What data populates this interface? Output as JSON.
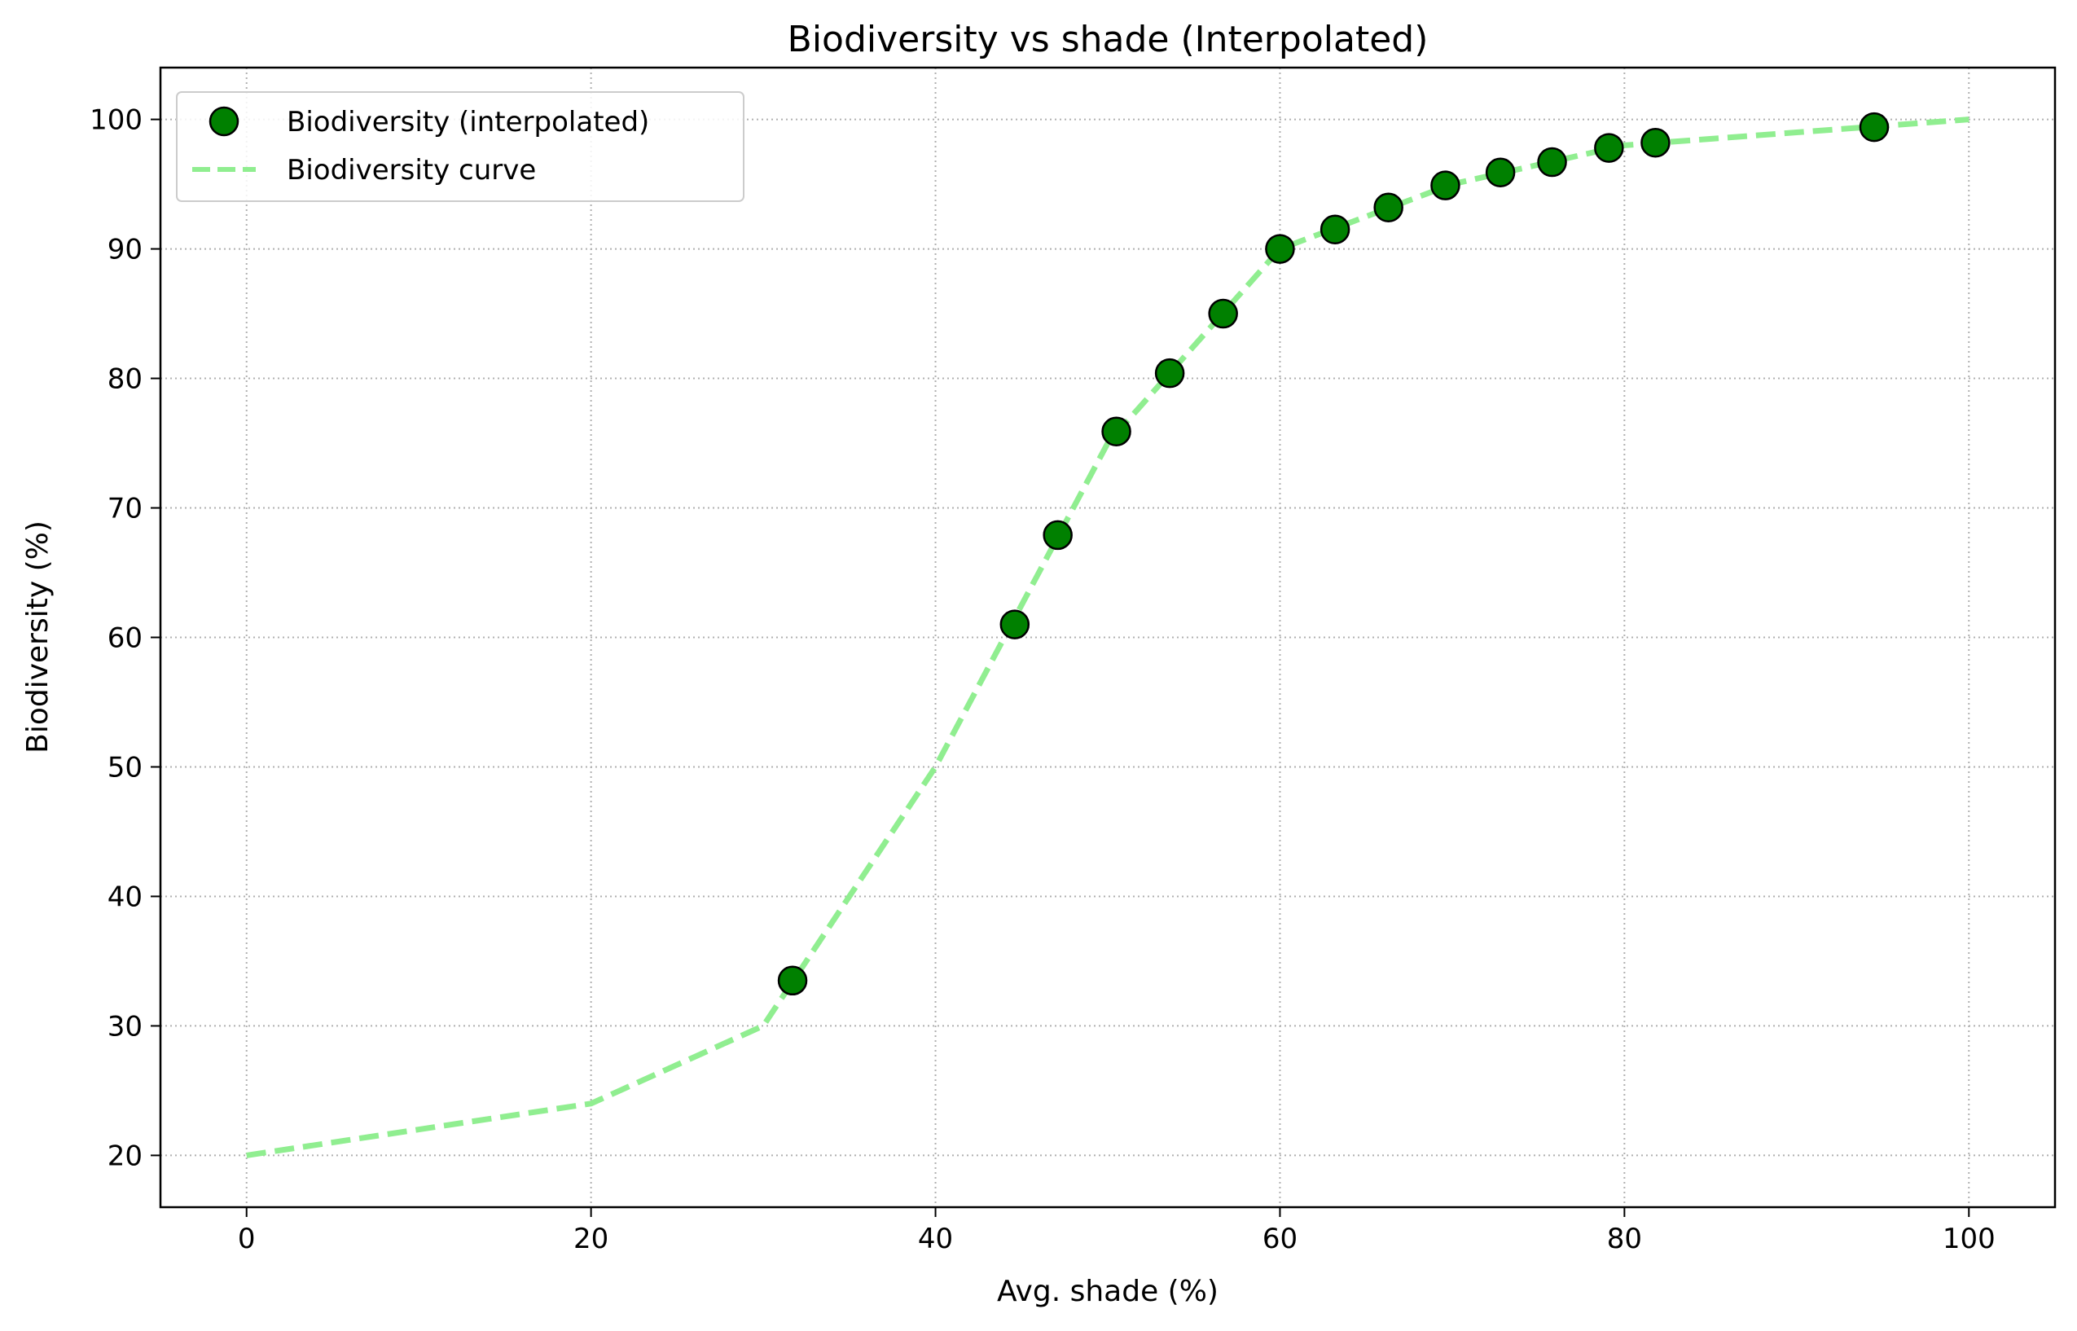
{
  "chart_data": {
    "type": "scatter",
    "title": "Biodiversity vs shade (Interpolated)",
    "xlabel": "Avg. shade (%)",
    "ylabel": "Biodiversity (%)",
    "xlim": [
      -5,
      105
    ],
    "ylim": [
      16,
      104
    ],
    "xticks": [
      0,
      20,
      40,
      60,
      80,
      100
    ],
    "yticks": [
      20,
      30,
      40,
      50,
      60,
      70,
      80,
      90,
      100
    ],
    "grid": true,
    "legend_position": "upper-left",
    "series": [
      {
        "name": "Biodiversity (interpolated)",
        "kind": "scatter",
        "color": "#008000",
        "edge_color": "#000000",
        "x": [
          31.7,
          44.6,
          47.1,
          50.5,
          53.6,
          56.7,
          60.0,
          63.2,
          66.3,
          69.6,
          72.8,
          75.8,
          79.1,
          81.8,
          94.5
        ],
        "y": [
          33.5,
          61.0,
          67.9,
          75.9,
          80.4,
          85.0,
          90.0,
          91.5,
          93.2,
          94.9,
          95.9,
          96.7,
          97.8,
          98.2,
          99.4
        ]
      },
      {
        "name": "Biodiversity curve",
        "kind": "line",
        "style": "dashed",
        "color": "#90ee90",
        "x": [
          0,
          20,
          30,
          40,
          50,
          60,
          70,
          80,
          90,
          100
        ],
        "y": [
          20,
          24,
          30,
          50,
          75,
          90,
          95,
          98,
          99,
          100
        ]
      }
    ]
  }
}
